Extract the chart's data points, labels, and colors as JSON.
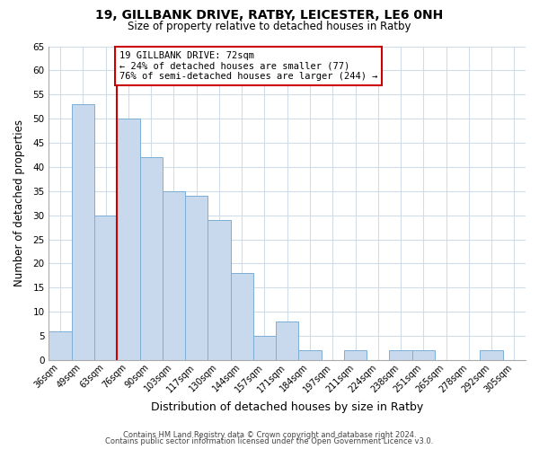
{
  "title_main": "19, GILLBANK DRIVE, RATBY, LEICESTER, LE6 0NH",
  "title_sub": "Size of property relative to detached houses in Ratby",
  "xlabel": "Distribution of detached houses by size in Ratby",
  "ylabel": "Number of detached properties",
  "bar_labels": [
    "36sqm",
    "49sqm",
    "63sqm",
    "76sqm",
    "90sqm",
    "103sqm",
    "117sqm",
    "130sqm",
    "144sqm",
    "157sqm",
    "171sqm",
    "184sqm",
    "197sqm",
    "211sqm",
    "224sqm",
    "238sqm",
    "251sqm",
    "265sqm",
    "278sqm",
    "292sqm",
    "305sqm"
  ],
  "bar_heights": [
    6,
    53,
    30,
    50,
    42,
    35,
    34,
    29,
    18,
    5,
    8,
    2,
    0,
    2,
    0,
    2,
    2,
    0,
    0,
    2,
    0
  ],
  "bar_color": "#c9d9ed",
  "bar_edge_color": "#7bafd4",
  "vline_color": "#cc0000",
  "annotation_text": "19 GILLBANK DRIVE: 72sqm\n← 24% of detached houses are smaller (77)\n76% of semi-detached houses are larger (244) →",
  "annotation_box_color": "#ffffff",
  "annotation_box_edge": "#cc0000",
  "ylim": [
    0,
    65
  ],
  "yticks": [
    0,
    5,
    10,
    15,
    20,
    25,
    30,
    35,
    40,
    45,
    50,
    55,
    60,
    65
  ],
  "footer1": "Contains HM Land Registry data © Crown copyright and database right 2024.",
  "footer2": "Contains public sector information licensed under the Open Government Licence v3.0.",
  "bg_color": "#ffffff",
  "grid_color": "#d0dce8"
}
